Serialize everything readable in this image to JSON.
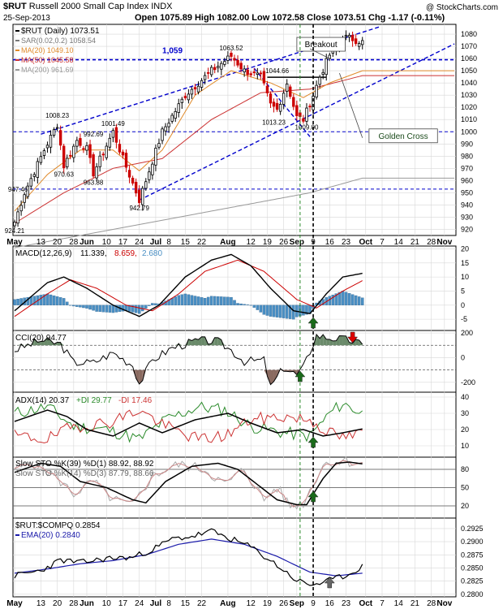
{
  "header": {
    "ticker": "$RUT",
    "name": "Russell 2000 Small Cap Index",
    "exchange": "INDX",
    "watermark": "@ StockCharts.com",
    "date": "25-Sep-2013",
    "quote": "Open 1075.89  High 1082.00  Low 1072.58  Close 1073.51  Chg -1.17 (-0.11%)"
  },
  "colors": {
    "up_candle": "#000000",
    "down_candle": "#cc0000",
    "trend": "#0000cc",
    "ma20": "#e08a2a",
    "ma50": "#cc3333",
    "ma200": "#999999",
    "macd_hist": "#4a8fc4",
    "cci_fill": "#6a8a6a",
    "cci_neg_fill": "#8a6a60",
    "plus_di": "#2a8a2a",
    "minus_di": "#cc3333",
    "ema": "#1a1aaa",
    "arrow_up": "#1a6a1a",
    "arrow_down": "#dd0000",
    "arrow_gray": "#666666"
  },
  "chart_data": [
    {
      "type": "candlestick",
      "title": "$RUT (Daily) 1073.51",
      "legend": [
        {
          "name": "$RUT (Daily)",
          "value": "1073.51",
          "color": "#000000"
        },
        {
          "name": "SAR(0.02,0.2)",
          "value": "1058.54",
          "color": "#777777"
        },
        {
          "name": "MA(20)",
          "value": "1049.10",
          "color": "#e08a2a"
        },
        {
          "name": "MA(50)",
          "value": "1045.58",
          "color": "#cc3333"
        },
        {
          "name": "MA(200)",
          "value": "961.69",
          "color": "#999999"
        }
      ],
      "ylim": [
        915,
        1088
      ],
      "y_ticks": [
        920,
        930,
        940,
        950,
        960,
        970,
        980,
        990,
        1000,
        1010,
        1020,
        1030,
        1040,
        1050,
        1060,
        1070,
        1080
      ],
      "horizontal_levels": [
        1059,
        1000,
        953
      ],
      "annotations": [
        {
          "text": "924.21",
          "x": 0,
          "y": 924.21
        },
        {
          "text": "947.46",
          "x": 1,
          "y": 947.46
        },
        {
          "text": "1008.23",
          "x": 13,
          "y": 1008.23
        },
        {
          "text": "970.63",
          "x": 15,
          "y": 970.63
        },
        {
          "text": "963.88",
          "x": 24,
          "y": 963.88
        },
        {
          "text": "992.69",
          "x": 24,
          "y": 992.69
        },
        {
          "text": "1001.49",
          "x": 30,
          "y": 1001.49
        },
        {
          "text": "942.79",
          "x": 38,
          "y": 942.79
        },
        {
          "text": "1,059",
          "x": 45,
          "y": 1059
        },
        {
          "text": "1063.52",
          "x": 66,
          "y": 1063.52
        },
        {
          "text": "1044.66",
          "x": 80,
          "y": 1044.66
        },
        {
          "text": "1013.23",
          "x": 79,
          "y": 1013.23
        },
        {
          "text": "1009.00",
          "x": 89,
          "y": 1009.0
        },
        {
          "text": "Breakout",
          "x": 87,
          "y": 1070
        },
        {
          "text": "Golden Cross",
          "x": 109,
          "y": 995
        }
      ]
    },
    {
      "type": "line",
      "title": "MACD(12,26,9) 11.339, 8.659, 2.680",
      "series": [
        {
          "name": "MACD(12,26,9)",
          "last": "11.339",
          "color": "#000000"
        },
        {
          "name": "Signal",
          "last": "8.659",
          "color": "#cc0000"
        },
        {
          "name": "Histogram",
          "last": "2.680",
          "color": "#4a8fc4"
        }
      ],
      "ylim": [
        -9,
        21
      ],
      "y_ticks": [
        -5,
        0,
        5,
        10,
        15,
        20
      ]
    },
    {
      "type": "line",
      "title": "CCI(20) 94.77",
      "series": [
        {
          "name": "CCI(20)",
          "last": "94.77",
          "color": "#000000"
        }
      ],
      "ylim": [
        -280,
        220
      ],
      "y_ticks": [
        -200,
        0,
        200
      ],
      "levels": [
        100,
        -100
      ]
    },
    {
      "type": "line",
      "title": "ADX(14) 20.37 +DI 29.77 -DI 17.46",
      "series": [
        {
          "name": "ADX(14)",
          "last": "20.37",
          "color": "#000000"
        },
        {
          "name": "+DI",
          "last": "29.77",
          "color": "#2a8a2a"
        },
        {
          "name": "-DI",
          "last": "17.46",
          "color": "#cc3333"
        }
      ],
      "ylim": [
        3,
        43
      ],
      "y_ticks": [
        10,
        20,
        30,
        40
      ]
    },
    {
      "type": "line",
      "title": "Slow STO",
      "series": [
        {
          "name": "Slow STO %K(39) %D(1)",
          "last": "88.92, 88.92",
          "color": "#000000"
        },
        {
          "name": "Slow STO %K(14) %D(3)",
          "last": "87.79, 88.66",
          "color": "#999999"
        }
      ],
      "ylim": [
        0,
        100
      ],
      "y_ticks": [
        20,
        50,
        80
      ],
      "levels": [
        20,
        50,
        80
      ]
    },
    {
      "type": "line",
      "title": "$RUT:$COMPQ 0.2854",
      "series": [
        {
          "name": "$RUT:$COMPQ",
          "last": "0.2854",
          "color": "#000000"
        },
        {
          "name": "EMA(20)",
          "last": "0.2840",
          "color": "#1a1aaa"
        }
      ],
      "ylim": [
        0.2795,
        0.2945
      ],
      "y_ticks": [
        "0.2800",
        "0.2825",
        "0.2850",
        "0.2875",
        "0.2900",
        "0.2925"
      ]
    }
  ],
  "x_axis": {
    "top_labels": [
      {
        "text": "May",
        "i": 0,
        "bold": true
      },
      {
        "text": "13",
        "i": 8
      },
      {
        "text": "20",
        "i": 13
      },
      {
        "text": "28",
        "i": 18
      },
      {
        "text": "Jun",
        "i": 22,
        "bold": true
      },
      {
        "text": "10",
        "i": 28
      },
      {
        "text": "17",
        "i": 33
      },
      {
        "text": "24",
        "i": 38
      },
      {
        "text": "Jul",
        "i": 43,
        "bold": true
      },
      {
        "text": "8",
        "i": 47
      },
      {
        "text": "15",
        "i": 52
      },
      {
        "text": "22",
        "i": 57
      },
      {
        "text": "Aug",
        "i": 65,
        "bold": true
      },
      {
        "text": "12",
        "i": 72
      },
      {
        "text": "19",
        "i": 77
      },
      {
        "text": "26",
        "i": 82
      },
      {
        "text": "Sep",
        "i": 86,
        "bold": true
      },
      {
        "text": "9",
        "i": 91
      },
      {
        "text": "16",
        "i": 96
      },
      {
        "text": "23",
        "i": 101
      },
      {
        "text": "Oct",
        "i": 107,
        "bold": true
      },
      {
        "text": "7",
        "i": 112
      },
      {
        "text": "14",
        "i": 117
      },
      {
        "text": "21",
        "i": 122
      },
      {
        "text": "28",
        "i": 127
      },
      {
        "text": "Nov",
        "i": 131,
        "bold": true
      }
    ]
  }
}
